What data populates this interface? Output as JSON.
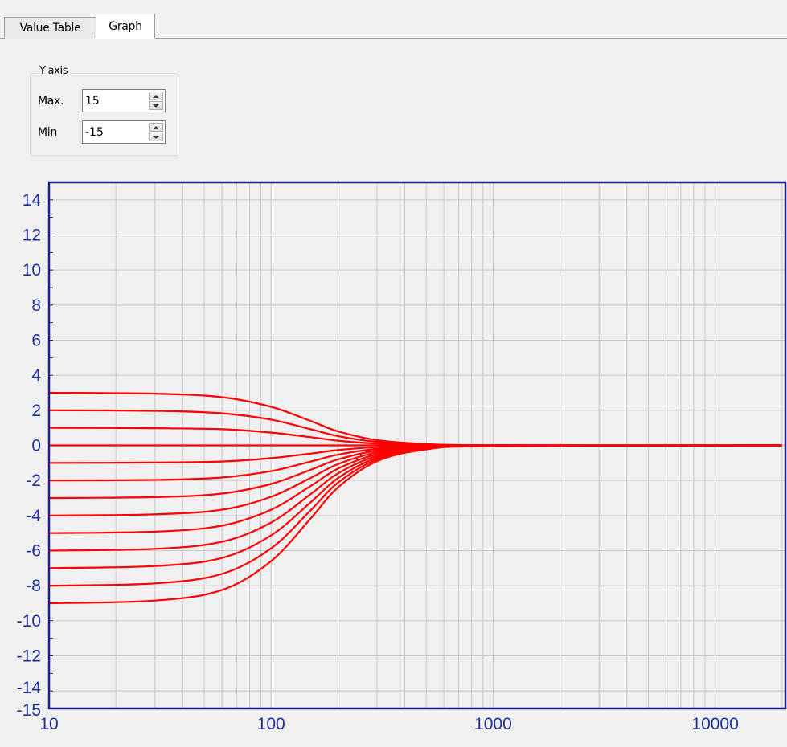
{
  "tabs": [
    {
      "label": "Value Table",
      "selected": false
    },
    {
      "label": "Graph",
      "selected": true
    }
  ],
  "yaxis_group": {
    "title": "Y-axis",
    "max_label": "Max.",
    "max_value": "15",
    "min_label": "Min",
    "min_value": "-15"
  },
  "colors": {
    "frame": "#1f1f8c",
    "tick_label": "#1f2f9c",
    "grid": "#c8c8c8",
    "curve": "#ff0000",
    "plot_bg": "#f0f0f0"
  },
  "chart_data": {
    "type": "line",
    "x_scale": "log",
    "xlim": [
      10,
      20000
    ],
    "ylim": [
      -15,
      15
    ],
    "grid": true,
    "x_ticks": [
      "10",
      "100",
      "1000",
      "10000"
    ],
    "y_ticks": [
      "14",
      "12",
      "10",
      "8",
      "6",
      "4",
      "2",
      "0",
      "-2",
      "-4",
      "-6",
      "-8",
      "-10",
      "-12",
      "-14",
      "-15"
    ],
    "series": [
      {
        "points": [
          [
            10,
            3
          ],
          [
            30,
            2.95
          ],
          [
            60,
            2.75
          ],
          [
            100,
            2.2
          ],
          [
            150,
            1.4
          ],
          [
            200,
            0.8
          ],
          [
            300,
            0.3
          ],
          [
            500,
            0.08
          ],
          [
            1000,
            0.01
          ],
          [
            20000,
            0
          ]
        ]
      },
      {
        "points": [
          [
            10,
            2
          ],
          [
            30,
            1.97
          ],
          [
            60,
            1.83
          ],
          [
            100,
            1.47
          ],
          [
            150,
            0.93
          ],
          [
            200,
            0.53
          ],
          [
            300,
            0.2
          ],
          [
            500,
            0.05
          ],
          [
            1000,
            0.01
          ],
          [
            20000,
            0
          ]
        ]
      },
      {
        "points": [
          [
            10,
            1
          ],
          [
            30,
            0.98
          ],
          [
            60,
            0.92
          ],
          [
            100,
            0.73
          ],
          [
            150,
            0.47
          ],
          [
            200,
            0.27
          ],
          [
            300,
            0.1
          ],
          [
            500,
            0.03
          ],
          [
            1000,
            0
          ],
          [
            20000,
            0
          ]
        ]
      },
      {
        "points": [
          [
            10,
            0
          ],
          [
            20000,
            0
          ]
        ]
      },
      {
        "points": [
          [
            10,
            -1
          ],
          [
            30,
            -0.98
          ],
          [
            60,
            -0.92
          ],
          [
            100,
            -0.73
          ],
          [
            150,
            -0.47
          ],
          [
            200,
            -0.27
          ],
          [
            300,
            -0.1
          ],
          [
            500,
            -0.03
          ],
          [
            1000,
            0
          ],
          [
            20000,
            0
          ]
        ]
      },
      {
        "points": [
          [
            10,
            -2
          ],
          [
            30,
            -1.97
          ],
          [
            60,
            -1.83
          ],
          [
            100,
            -1.47
          ],
          [
            150,
            -0.93
          ],
          [
            200,
            -0.53
          ],
          [
            300,
            -0.2
          ],
          [
            500,
            -0.05
          ],
          [
            1000,
            -0.01
          ],
          [
            20000,
            0
          ]
        ]
      },
      {
        "points": [
          [
            10,
            -3
          ],
          [
            30,
            -2.95
          ],
          [
            60,
            -2.75
          ],
          [
            100,
            -2.2
          ],
          [
            150,
            -1.4
          ],
          [
            200,
            -0.8
          ],
          [
            300,
            -0.3
          ],
          [
            500,
            -0.08
          ],
          [
            1000,
            -0.01
          ],
          [
            20000,
            0
          ]
        ]
      },
      {
        "points": [
          [
            10,
            -4
          ],
          [
            30,
            -3.93
          ],
          [
            60,
            -3.67
          ],
          [
            100,
            -2.93
          ],
          [
            150,
            -1.87
          ],
          [
            200,
            -1.07
          ],
          [
            300,
            -0.4
          ],
          [
            500,
            -0.1
          ],
          [
            1000,
            -0.02
          ],
          [
            20000,
            0
          ]
        ]
      },
      {
        "points": [
          [
            10,
            -5
          ],
          [
            30,
            -4.92
          ],
          [
            60,
            -4.58
          ],
          [
            100,
            -3.67
          ],
          [
            150,
            -2.33
          ],
          [
            200,
            -1.33
          ],
          [
            300,
            -0.5
          ],
          [
            500,
            -0.13
          ],
          [
            1000,
            -0.02
          ],
          [
            20000,
            0
          ]
        ]
      },
      {
        "points": [
          [
            10,
            -6
          ],
          [
            30,
            -5.9
          ],
          [
            60,
            -5.5
          ],
          [
            100,
            -4.4
          ],
          [
            150,
            -2.8
          ],
          [
            200,
            -1.6
          ],
          [
            300,
            -0.6
          ],
          [
            500,
            -0.15
          ],
          [
            1000,
            -0.02
          ],
          [
            20000,
            0
          ]
        ]
      },
      {
        "points": [
          [
            10,
            -7
          ],
          [
            30,
            -6.88
          ],
          [
            60,
            -6.42
          ],
          [
            100,
            -5.13
          ],
          [
            150,
            -3.27
          ],
          [
            200,
            -1.87
          ],
          [
            300,
            -0.7
          ],
          [
            500,
            -0.18
          ],
          [
            1000,
            -0.03
          ],
          [
            20000,
            0
          ]
        ]
      },
      {
        "points": [
          [
            10,
            -8
          ],
          [
            30,
            -7.87
          ],
          [
            60,
            -7.33
          ],
          [
            100,
            -5.87
          ],
          [
            150,
            -3.73
          ],
          [
            200,
            -2.13
          ],
          [
            300,
            -0.8
          ],
          [
            500,
            -0.2
          ],
          [
            1000,
            -0.03
          ],
          [
            20000,
            0
          ]
        ]
      },
      {
        "points": [
          [
            10,
            -9
          ],
          [
            30,
            -8.85
          ],
          [
            60,
            -8.25
          ],
          [
            100,
            -6.6
          ],
          [
            150,
            -4.2
          ],
          [
            200,
            -2.4
          ],
          [
            300,
            -0.9
          ],
          [
            500,
            -0.23
          ],
          [
            1000,
            -0.04
          ],
          [
            20000,
            0
          ]
        ]
      }
    ]
  }
}
